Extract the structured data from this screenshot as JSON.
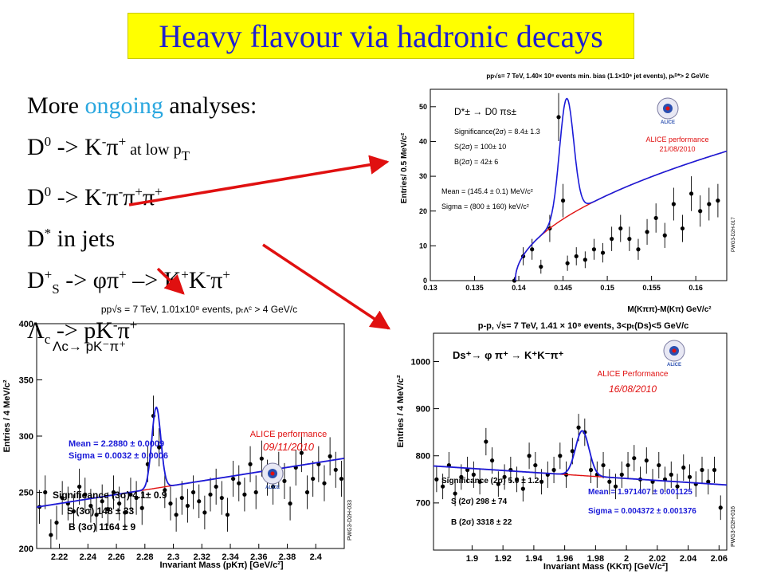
{
  "banner": {
    "title": "Heavy flavour via hadronic decays"
  },
  "list": {
    "intro_a": "More ",
    "intro_b": "ongoing",
    "intro_c": " analyses:",
    "l1_a": "D",
    "l1_b": "0",
    "l1_c": " -> K",
    "l1_d": "-",
    "l1_e": "π",
    "l1_f": "+",
    "l1_g": " at low p",
    "l1_h": "T",
    "l2_a": "D",
    "l2_b": "0",
    "l2_c": " -> K",
    "l2_d": "-",
    "l2_e": "π",
    "l2_f": "-",
    "l2_g": "π",
    "l2_h": "+",
    "l2_i": "π",
    "l2_j": "+",
    "l3_a": "D",
    "l3_b": "*",
    "l3_c": " in jets",
    "l4_a": "D",
    "l4_b": "+",
    "l4_c": "S",
    "l4_d": " -> φπ",
    "l4_e": "+",
    "l4_f": " –> K",
    "l4_g": "+",
    "l4_h": "K",
    "l4_i": "-",
    "l4_j": "π",
    "l4_k": "+",
    "l5_a": "Λ",
    "l5_b": "c",
    "l5_c": " -> pK",
    "l5_d": "-",
    "l5_e": "π",
    "l5_f": "+"
  },
  "colors": {
    "data": "#000000",
    "fit": "#1a1ad8",
    "background": "#e01010",
    "alice_red": "#e01010",
    "banner": "#ffff00",
    "title_text": "#1f1fd0",
    "accent": "#2aa7df",
    "arrow": "#e01010"
  },
  "chart_data": [
    {
      "type": "scatter",
      "id": "dstar",
      "header": "pp√s= 7 TeV, 1.40× 10⁸ events min. bias (1.1×10⁶ jet events), pₜᴰ*> 2 GeV/c",
      "xlabel": "M(Kππ)-M(Kπ) GeV/c²",
      "ylabel": "Entries/ 0.5 MeV/c²",
      "xlim": [
        0.13,
        0.1635
      ],
      "ylim": [
        0,
        55
      ],
      "xticks": [
        0.13,
        0.135,
        0.14,
        0.145,
        0.15,
        0.155,
        0.16
      ],
      "xtick_labels": [
        "0.13",
        "0.135",
        "0.14",
        "0.145",
        "0.15",
        "0.155",
        "0.16"
      ],
      "yticks": [
        0,
        10,
        20,
        30,
        40,
        50
      ],
      "ytick_labels": [
        "0",
        "10",
        "20",
        "30",
        "40",
        "50"
      ],
      "decay_label": "D*± → D0 πs±",
      "text": [
        "Significance(2σ) = 8.4± 1.3",
        "S(2σ) = 100± 10",
        "B(2σ) = 42± 6",
        "Mean = (145.4 ± 0.1) MeV/c²",
        "Sigma = (800 ± 160) keV/c²"
      ],
      "performance": "ALICE performance",
      "date": "21/08/2010",
      "logo": "ALICE",
      "plot_id": "PWG3-D2H-017",
      "points": {
        "x": [
          0.1395,
          0.1405,
          0.1415,
          0.1425,
          0.1435,
          0.1445,
          0.145,
          0.1455,
          0.1465,
          0.1475,
          0.1485,
          0.1495,
          0.1505,
          0.1515,
          0.1525,
          0.1535,
          0.1545,
          0.1555,
          0.1565,
          0.1575,
          0.1585,
          0.1595,
          0.1605,
          0.1615,
          0.1625
        ],
        "y": [
          0,
          7,
          9,
          4,
          15,
          47,
          23,
          5,
          7,
          6,
          9,
          8,
          12,
          15,
          12,
          9,
          14,
          18,
          13,
          22,
          15,
          25,
          20,
          22,
          23
        ],
        "err": [
          1,
          2.6,
          3,
          2,
          3.9,
          6.9,
          4.8,
          2.2,
          2.6,
          2.4,
          3,
          2.8,
          3.5,
          3.9,
          3.5,
          3,
          3.7,
          4.2,
          3.6,
          4.7,
          3.9,
          5,
          4.5,
          4.7,
          4.8
        ]
      },
      "background": {
        "threshold": 0.1396,
        "coef": 34.6,
        "power": 0.5
      },
      "signal": {
        "mean": 0.1454,
        "sigma": 0.0008,
        "amplitude": 34
      },
      "background_fit_label": "",
      "fit_label": ""
    },
    {
      "type": "scatter",
      "id": "lambdac",
      "header": "pp√s = 7 TeV, 1.01x10⁸ events, pₜᴧᶜ > 4 GeV/c",
      "xlabel": "Invariant Mass (pKπ) [GeV/c²]",
      "ylabel": "Entries / 4 MeV/c²",
      "xlim": [
        2.204,
        2.42
      ],
      "ylim": [
        200,
        400
      ],
      "xticks": [
        2.22,
        2.24,
        2.26,
        2.28,
        2.3,
        2.32,
        2.34,
        2.36,
        2.38,
        2.4
      ],
      "xtick_labels": [
        "2.22",
        "2.24",
        "2.26",
        "2.28",
        "2.3",
        "2.32",
        "2.34",
        "2.36",
        "2.38",
        "2.4"
      ],
      "yticks": [
        200,
        250,
        300,
        350,
        400
      ],
      "ytick_labels": [
        "200",
        "250",
        "300",
        "350",
        "400"
      ],
      "decay_label": "Λc→ pK⁻π⁺",
      "text": [
        "Mean = 2.2880 ± 0.0009",
        "Sigma = 0.0032 ± 0.0006",
        "Significance (3σ) 4.1± 0.9",
        "S (3σ) 148 ± 33",
        "B (3σ) 1164 ± 9"
      ],
      "performance": "ALICE performance",
      "date": "09/11/2010",
      "logo": "ALICE",
      "plot_id": "PWG3-D2H-033",
      "points": {
        "x": [
          2.206,
          2.21,
          2.214,
          2.218,
          2.222,
          2.226,
          2.23,
          2.234,
          2.238,
          2.242,
          2.246,
          2.25,
          2.254,
          2.258,
          2.262,
          2.266,
          2.27,
          2.274,
          2.278,
          2.282,
          2.286,
          2.29,
          2.294,
          2.298,
          2.302,
          2.306,
          2.31,
          2.314,
          2.318,
          2.322,
          2.326,
          2.33,
          2.334,
          2.338,
          2.342,
          2.346,
          2.35,
          2.354,
          2.358,
          2.362,
          2.366,
          2.37,
          2.374,
          2.378,
          2.382,
          2.386,
          2.39,
          2.394,
          2.398,
          2.402,
          2.406,
          2.41,
          2.414,
          2.418
        ],
        "y": [
          237,
          250,
          212,
          223,
          245,
          240,
          233,
          255,
          248,
          238,
          230,
          242,
          235,
          250,
          240,
          232,
          248,
          245,
          236,
          275,
          318,
          290,
          252,
          240,
          230,
          245,
          238,
          250,
          242,
          232,
          248,
          255,
          245,
          230,
          262,
          258,
          248,
          275,
          250,
          280,
          263,
          255,
          270,
          260,
          240,
          272,
          285,
          250,
          262,
          275,
          258,
          282,
          270,
          262
        ],
        "err": [
          15,
          15,
          14,
          15,
          15,
          15,
          15,
          16,
          15,
          15,
          15,
          15,
          15,
          15,
          15,
          15,
          15,
          15,
          15,
          16,
          18,
          17,
          16,
          15,
          15,
          15,
          15,
          15,
          15,
          15,
          15,
          16,
          15,
          15,
          16,
          16,
          15,
          16,
          15,
          16,
          16,
          16,
          16,
          16,
          15,
          16,
          17,
          15,
          16,
          16,
          16,
          17,
          16,
          16
        ]
      },
      "background": {
        "a": 237,
        "b": 2.205,
        "slope": 201
      },
      "signal": {
        "mean": 2.288,
        "sigma": 0.0032,
        "amplitude": 72
      },
      "fit_label": ""
    },
    {
      "type": "scatter",
      "id": "ds",
      "header": "p-p, √s= 7 TeV, 1.41 × 10⁸ events, 3<pₜ(Ds)<5 GeV/c",
      "xlabel": "Invariant Mass (KKπ) [GeV/c²]",
      "ylabel": "Entries / 4 MeV/c²",
      "xlim": [
        1.875,
        2.065
      ],
      "ylim": [
        600,
        1060
      ],
      "xticks": [
        1.9,
        1.92,
        1.94,
        1.96,
        1.98,
        2.0,
        2.02,
        2.04,
        2.06
      ],
      "xtick_labels": [
        "1.9",
        "1.92",
        "1.94",
        "1.96",
        "1.98",
        "2",
        "2.02",
        "2.04",
        "2.06"
      ],
      "yticks": [
        700,
        800,
        900,
        1000
      ],
      "ytick_labels": [
        "700",
        "800",
        "900",
        "1000"
      ],
      "decay_label": "Ds⁺→ φ π⁺ → K⁺K⁻π⁺",
      "text": [
        "Significance (2σ) 5.0 ± 1.2",
        "S (2σ) 298 ± 74",
        "B (2σ) 3318 ± 22",
        "Mean = 1.971407 ± 0.001125",
        "Sigma = 0.004372 ± 0.001376"
      ],
      "performance": "ALICE Performance",
      "date": "16/08/2010",
      "logo": "ALICE",
      "plot_id": "PWG3-D2H-016",
      "points": {
        "x": [
          1.877,
          1.881,
          1.885,
          1.889,
          1.893,
          1.897,
          1.901,
          1.905,
          1.909,
          1.913,
          1.917,
          1.921,
          1.925,
          1.929,
          1.933,
          1.937,
          1.941,
          1.945,
          1.949,
          1.953,
          1.957,
          1.961,
          1.965,
          1.969,
          1.973,
          1.977,
          1.981,
          1.985,
          1.989,
          1.993,
          1.997,
          2.001,
          2.005,
          2.009,
          2.013,
          2.017,
          2.021,
          2.025,
          2.029,
          2.033,
          2.037,
          2.041,
          2.045,
          2.049,
          2.053,
          2.057,
          2.061
        ],
        "y": [
          750,
          735,
          780,
          720,
          755,
          770,
          760,
          745,
          830,
          790,
          740,
          755,
          770,
          750,
          730,
          800,
          780,
          745,
          760,
          770,
          800,
          760,
          810,
          860,
          850,
          770,
          760,
          780,
          745,
          735,
          760,
          780,
          795,
          750,
          790,
          745,
          780,
          750,
          760,
          735,
          775,
          755,
          740,
          770,
          745,
          770,
          690
        ],
        "err": [
          27,
          27,
          28,
          27,
          27,
          28,
          28,
          27,
          29,
          28,
          27,
          27,
          28,
          27,
          27,
          28,
          28,
          27,
          28,
          28,
          28,
          28,
          28,
          29,
          29,
          28,
          28,
          28,
          27,
          27,
          28,
          28,
          28,
          27,
          28,
          27,
          28,
          27,
          28,
          27,
          28,
          27,
          27,
          28,
          27,
          28,
          26
        ]
      },
      "background": {
        "a": 778,
        "b": 1.877,
        "slope": -212
      },
      "signal": {
        "mean": 1.9714,
        "sigma": 0.0044,
        "amplitude": 95
      },
      "fit_label": ""
    }
  ]
}
